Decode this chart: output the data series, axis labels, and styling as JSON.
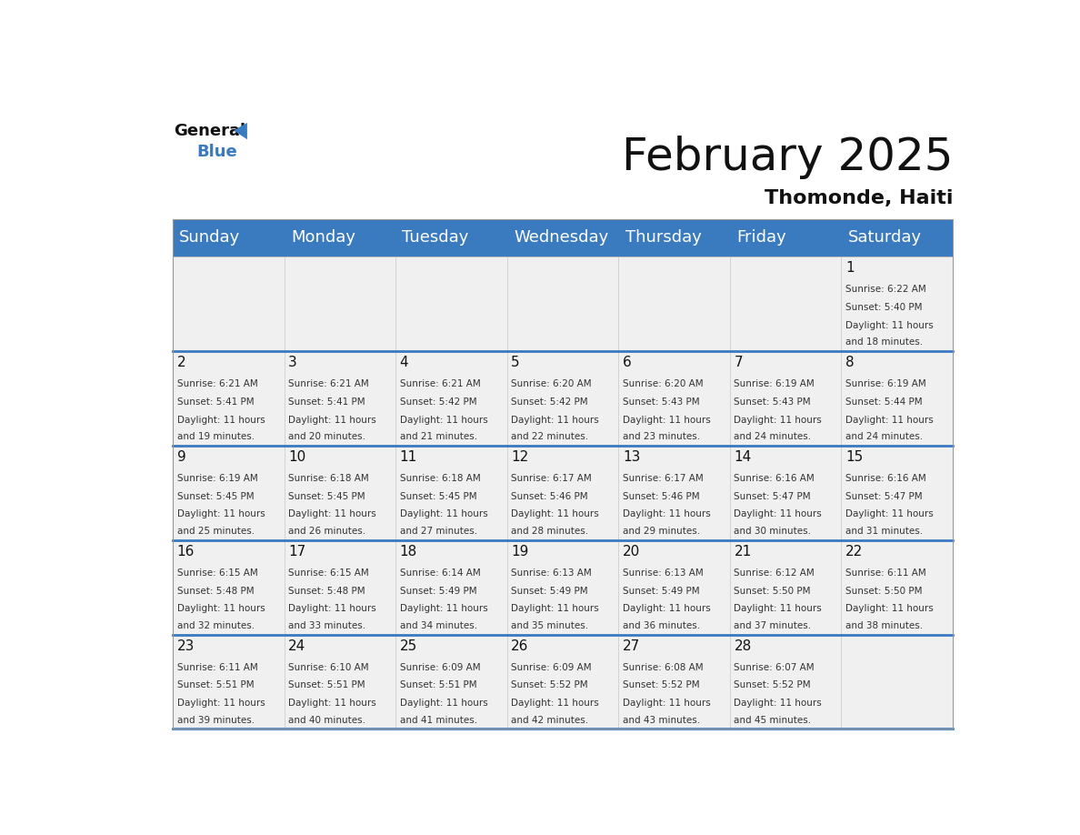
{
  "title": "February 2025",
  "subtitle": "Thomonde, Haiti",
  "header_color": "#3a7abf",
  "header_text_color": "#ffffff",
  "background_color": "#ffffff",
  "cell_bg_color": "#f0f0f0",
  "days_of_week": [
    "Sunday",
    "Monday",
    "Tuesday",
    "Wednesday",
    "Thursday",
    "Friday",
    "Saturday"
  ],
  "title_fontsize": 36,
  "subtitle_fontsize": 16,
  "day_header_fontsize": 13,
  "day_num_fontsize": 11,
  "cell_text_fontsize": 7.5,
  "calendar_data": [
    [
      {
        "day": "",
        "sunrise": "",
        "sunset": "",
        "daylight": ""
      },
      {
        "day": "",
        "sunrise": "",
        "sunset": "",
        "daylight": ""
      },
      {
        "day": "",
        "sunrise": "",
        "sunset": "",
        "daylight": ""
      },
      {
        "day": "",
        "sunrise": "",
        "sunset": "",
        "daylight": ""
      },
      {
        "day": "",
        "sunrise": "",
        "sunset": "",
        "daylight": ""
      },
      {
        "day": "",
        "sunrise": "",
        "sunset": "",
        "daylight": ""
      },
      {
        "day": "1",
        "sunrise": "Sunrise: 6:22 AM",
        "sunset": "Sunset: 5:40 PM",
        "daylight": "Daylight: 11 hours\nand 18 minutes."
      }
    ],
    [
      {
        "day": "2",
        "sunrise": "Sunrise: 6:21 AM",
        "sunset": "Sunset: 5:41 PM",
        "daylight": "Daylight: 11 hours\nand 19 minutes."
      },
      {
        "day": "3",
        "sunrise": "Sunrise: 6:21 AM",
        "sunset": "Sunset: 5:41 PM",
        "daylight": "Daylight: 11 hours\nand 20 minutes."
      },
      {
        "day": "4",
        "sunrise": "Sunrise: 6:21 AM",
        "sunset": "Sunset: 5:42 PM",
        "daylight": "Daylight: 11 hours\nand 21 minutes."
      },
      {
        "day": "5",
        "sunrise": "Sunrise: 6:20 AM",
        "sunset": "Sunset: 5:42 PM",
        "daylight": "Daylight: 11 hours\nand 22 minutes."
      },
      {
        "day": "6",
        "sunrise": "Sunrise: 6:20 AM",
        "sunset": "Sunset: 5:43 PM",
        "daylight": "Daylight: 11 hours\nand 23 minutes."
      },
      {
        "day": "7",
        "sunrise": "Sunrise: 6:19 AM",
        "sunset": "Sunset: 5:43 PM",
        "daylight": "Daylight: 11 hours\nand 24 minutes."
      },
      {
        "day": "8",
        "sunrise": "Sunrise: 6:19 AM",
        "sunset": "Sunset: 5:44 PM",
        "daylight": "Daylight: 11 hours\nand 24 minutes."
      }
    ],
    [
      {
        "day": "9",
        "sunrise": "Sunrise: 6:19 AM",
        "sunset": "Sunset: 5:45 PM",
        "daylight": "Daylight: 11 hours\nand 25 minutes."
      },
      {
        "day": "10",
        "sunrise": "Sunrise: 6:18 AM",
        "sunset": "Sunset: 5:45 PM",
        "daylight": "Daylight: 11 hours\nand 26 minutes."
      },
      {
        "day": "11",
        "sunrise": "Sunrise: 6:18 AM",
        "sunset": "Sunset: 5:45 PM",
        "daylight": "Daylight: 11 hours\nand 27 minutes."
      },
      {
        "day": "12",
        "sunrise": "Sunrise: 6:17 AM",
        "sunset": "Sunset: 5:46 PM",
        "daylight": "Daylight: 11 hours\nand 28 minutes."
      },
      {
        "day": "13",
        "sunrise": "Sunrise: 6:17 AM",
        "sunset": "Sunset: 5:46 PM",
        "daylight": "Daylight: 11 hours\nand 29 minutes."
      },
      {
        "day": "14",
        "sunrise": "Sunrise: 6:16 AM",
        "sunset": "Sunset: 5:47 PM",
        "daylight": "Daylight: 11 hours\nand 30 minutes."
      },
      {
        "day": "15",
        "sunrise": "Sunrise: 6:16 AM",
        "sunset": "Sunset: 5:47 PM",
        "daylight": "Daylight: 11 hours\nand 31 minutes."
      }
    ],
    [
      {
        "day": "16",
        "sunrise": "Sunrise: 6:15 AM",
        "sunset": "Sunset: 5:48 PM",
        "daylight": "Daylight: 11 hours\nand 32 minutes."
      },
      {
        "day": "17",
        "sunrise": "Sunrise: 6:15 AM",
        "sunset": "Sunset: 5:48 PM",
        "daylight": "Daylight: 11 hours\nand 33 minutes."
      },
      {
        "day": "18",
        "sunrise": "Sunrise: 6:14 AM",
        "sunset": "Sunset: 5:49 PM",
        "daylight": "Daylight: 11 hours\nand 34 minutes."
      },
      {
        "day": "19",
        "sunrise": "Sunrise: 6:13 AM",
        "sunset": "Sunset: 5:49 PM",
        "daylight": "Daylight: 11 hours\nand 35 minutes."
      },
      {
        "day": "20",
        "sunrise": "Sunrise: 6:13 AM",
        "sunset": "Sunset: 5:49 PM",
        "daylight": "Daylight: 11 hours\nand 36 minutes."
      },
      {
        "day": "21",
        "sunrise": "Sunrise: 6:12 AM",
        "sunset": "Sunset: 5:50 PM",
        "daylight": "Daylight: 11 hours\nand 37 minutes."
      },
      {
        "day": "22",
        "sunrise": "Sunrise: 6:11 AM",
        "sunset": "Sunset: 5:50 PM",
        "daylight": "Daylight: 11 hours\nand 38 minutes."
      }
    ],
    [
      {
        "day": "23",
        "sunrise": "Sunrise: 6:11 AM",
        "sunset": "Sunset: 5:51 PM",
        "daylight": "Daylight: 11 hours\nand 39 minutes."
      },
      {
        "day": "24",
        "sunrise": "Sunrise: 6:10 AM",
        "sunset": "Sunset: 5:51 PM",
        "daylight": "Daylight: 11 hours\nand 40 minutes."
      },
      {
        "day": "25",
        "sunrise": "Sunrise: 6:09 AM",
        "sunset": "Sunset: 5:51 PM",
        "daylight": "Daylight: 11 hours\nand 41 minutes."
      },
      {
        "day": "26",
        "sunrise": "Sunrise: 6:09 AM",
        "sunset": "Sunset: 5:52 PM",
        "daylight": "Daylight: 11 hours\nand 42 minutes."
      },
      {
        "day": "27",
        "sunrise": "Sunrise: 6:08 AM",
        "sunset": "Sunset: 5:52 PM",
        "daylight": "Daylight: 11 hours\nand 43 minutes."
      },
      {
        "day": "28",
        "sunrise": "Sunrise: 6:07 AM",
        "sunset": "Sunset: 5:52 PM",
        "daylight": "Daylight: 11 hours\nand 45 minutes."
      },
      {
        "day": "",
        "sunrise": "",
        "sunset": "",
        "daylight": ""
      }
    ]
  ]
}
